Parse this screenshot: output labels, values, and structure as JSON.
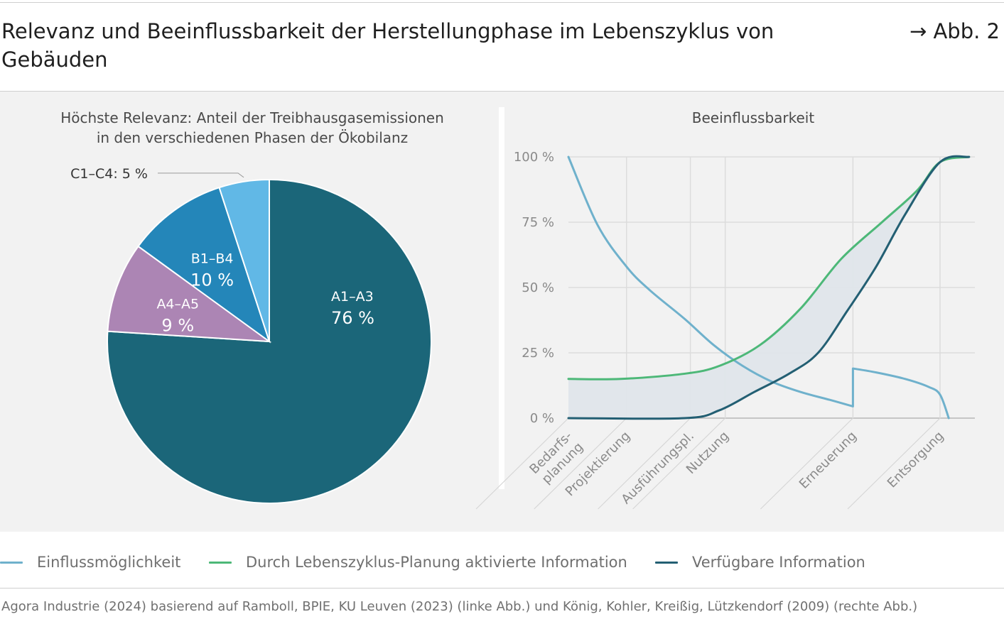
{
  "header": {
    "title": "Relevanz und Beeinflussbarkeit der Herstellungphase im Lebenszyklus von Gebäuden",
    "figure_ref": "→ Abb. 2"
  },
  "colors": {
    "a1a3": "#1b6679",
    "a4a5": "#ac85b4",
    "b1b4": "#2486b9",
    "c1c4": "#61b8e6",
    "einfluss": "#6fb1cc",
    "aktiviert": "#4db878",
    "verfuegbar": "#235f73",
    "band": "#dfe5ea"
  },
  "chart_data": [
    {
      "type": "pie",
      "title": "Höchste Relevanz: Anteil der Treibhausgasemissionen in den verschiedenen Phasen der Ökobilanz",
      "slices": [
        {
          "key": "a1a3",
          "label": "A1–A3",
          "value": 76,
          "value_label": "76 %"
        },
        {
          "key": "a4a5",
          "label": "A4–A5",
          "value": 9,
          "value_label": "9 %"
        },
        {
          "key": "b1b4",
          "label": "B1–B4",
          "value": 10,
          "value_label": "10 %"
        },
        {
          "key": "c1c4",
          "label": "C1–C4: 5 %",
          "value": 5,
          "value_label": ""
        }
      ],
      "start": "12 o'clock",
      "direction": "clockwise"
    },
    {
      "type": "line",
      "title": "Beeinflussbarkeit",
      "categories": [
        "Bedarfs-\nplanung",
        "Projektierung",
        "Ausführungspl.",
        "Nutzung",
        "Erneuerung",
        "Entsorgung"
      ],
      "x_positions": [
        0,
        1.0,
        2.1,
        2.7,
        4.9,
        6.4
      ],
      "x_max": 7.0,
      "yticks": [
        0,
        25,
        50,
        75,
        100
      ],
      "ytick_labels": [
        "0 %",
        "25 %",
        "50 %",
        "75 %",
        "100 %"
      ],
      "ylim": [
        0,
        100
      ],
      "grid": true,
      "legend_position": "bottom",
      "series": [
        {
          "key": "einfluss",
          "name": "Einflussmöglichkeit",
          "x": [
            0,
            0.5,
            1.0,
            1.4,
            2.0,
            2.5,
            3.0,
            3.5,
            4.0,
            4.5,
            4.9,
            4.9,
            5.3,
            5.8,
            6.2,
            6.4,
            6.55
          ],
          "y": [
            100,
            74,
            58,
            49,
            38,
            28,
            20,
            14,
            10,
            7,
            4.5,
            19,
            17.5,
            15,
            12,
            9,
            0
          ]
        },
        {
          "key": "aktiviert",
          "name": "Durch Lebenszyklus-Planung aktivierte Information",
          "x": [
            0,
            0.9,
            2.0,
            2.6,
            3.3,
            4.0,
            4.7,
            5.4,
            6.0,
            6.4,
            6.9
          ],
          "y": [
            15,
            15,
            17,
            20,
            28,
            42,
            61,
            75,
            87,
            98,
            100
          ]
        },
        {
          "key": "verfuegbar",
          "name": "Verfügbare Information",
          "x": [
            0,
            2.0,
            2.6,
            3.2,
            3.8,
            4.3,
            4.8,
            5.3,
            5.8,
            6.4,
            6.9
          ],
          "y": [
            0,
            0,
            3,
            10,
            17,
            25,
            41,
            58,
            78,
            98,
            100
          ]
        }
      ]
    }
  ],
  "source": "Agora Industrie (2024) basierend auf Ramboll, BPIE, KU Leuven (2023) (linke Abb.) und König, Kohler, Kreißig, Lützkendorf (2009) (rechte Abb.)"
}
